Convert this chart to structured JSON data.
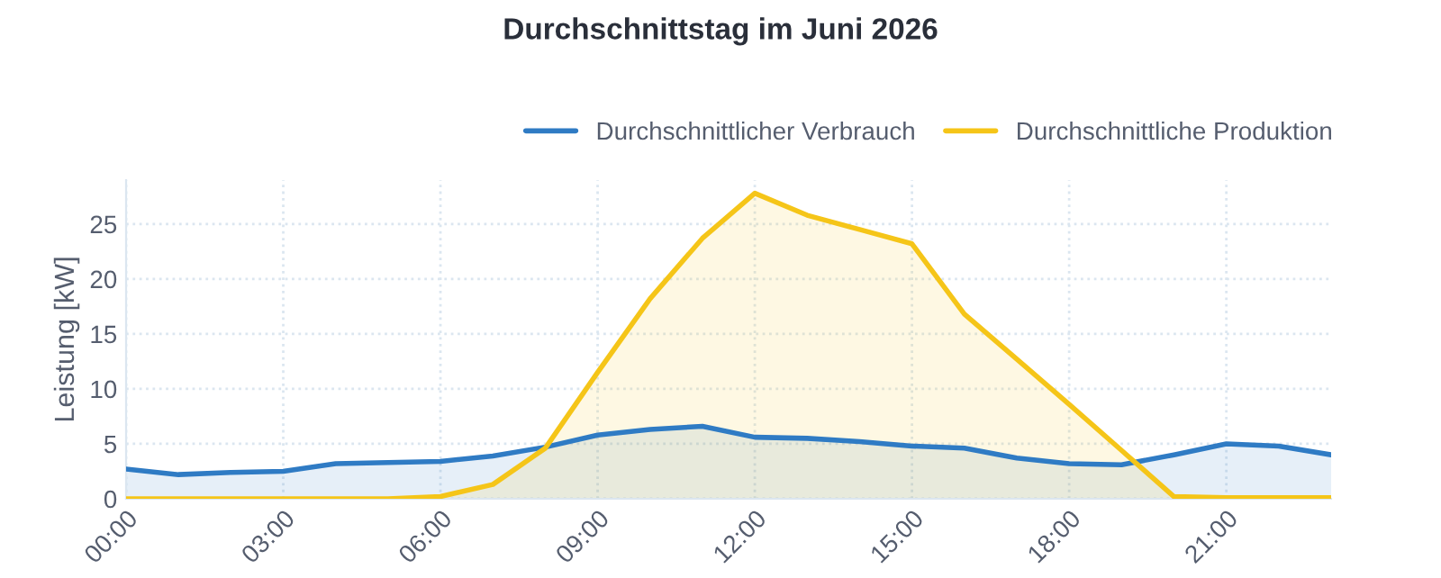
{
  "chart_data": {
    "type": "area",
    "title": "Durchschnittstag im Juni 2026",
    "ylabel": "Leistung [kW]",
    "x": [
      0,
      1,
      2,
      3,
      4,
      5,
      6,
      7,
      8,
      9,
      10,
      11,
      12,
      13,
      14,
      15,
      16,
      17,
      18,
      19,
      20,
      21,
      22,
      23
    ],
    "series": [
      {
        "name": "Durchschnittlicher Verbrauch",
        "color": "#2f7bc4",
        "values": [
          2.7,
          2.2,
          2.4,
          2.5,
          3.2,
          3.3,
          3.4,
          3.9,
          4.7,
          5.8,
          6.3,
          6.6,
          5.6,
          5.5,
          5.2,
          4.8,
          4.6,
          3.7,
          3.2,
          3.1,
          4.0,
          5.0,
          4.8,
          4.0
        ]
      },
      {
        "name": "Durchschnittliche Produktion",
        "color": "#f5c518",
        "values": [
          0,
          0,
          0,
          0,
          0,
          0,
          0.2,
          1.3,
          4.6,
          11.5,
          18.2,
          23.7,
          27.8,
          25.8,
          24.5,
          23.2,
          16.8,
          12.7,
          8.6,
          4.4,
          0.2,
          0.1,
          0.1,
          0.1
        ]
      }
    ],
    "xlim": [
      0,
      23
    ],
    "xticks": [
      {
        "value": 0,
        "label": "00:00"
      },
      {
        "value": 3,
        "label": "03:00"
      },
      {
        "value": 6,
        "label": "06:00"
      },
      {
        "value": 9,
        "label": "09:00"
      },
      {
        "value": 12,
        "label": "12:00"
      },
      {
        "value": 15,
        "label": "15:00"
      },
      {
        "value": 18,
        "label": "18:00"
      },
      {
        "value": 21,
        "label": "21:00"
      }
    ],
    "ylim": [
      0,
      29
    ],
    "yticks": [
      0,
      5,
      10,
      15,
      20,
      25
    ],
    "grid": true,
    "legend": "top right",
    "marker": "none",
    "line_style": "solid"
  }
}
